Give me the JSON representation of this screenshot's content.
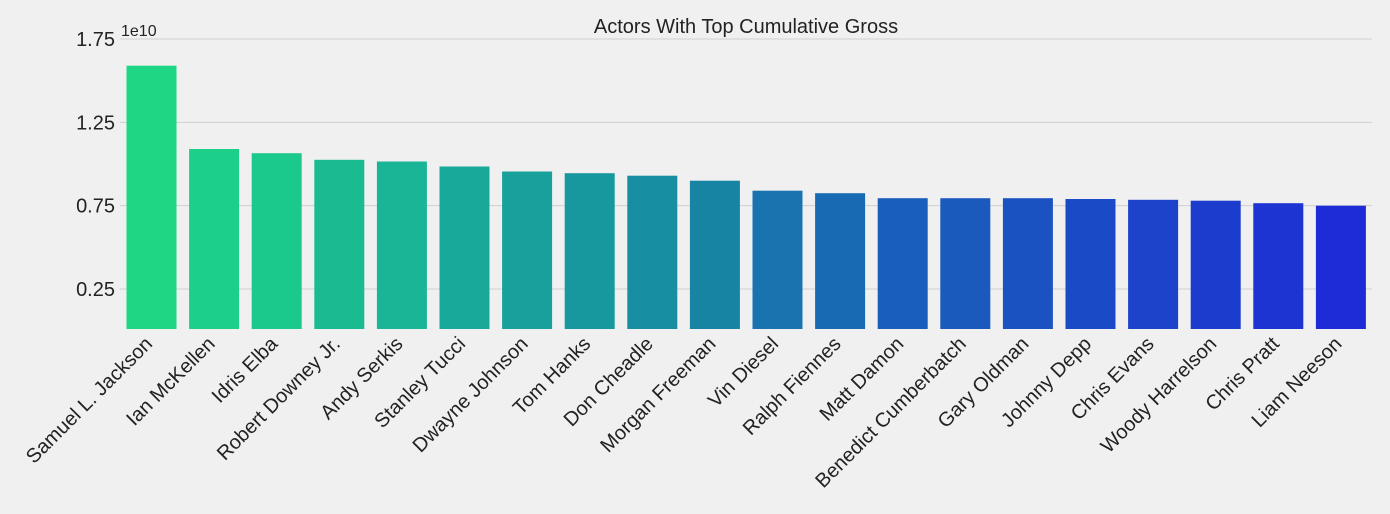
{
  "chart_data": {
    "type": "bar",
    "title": "Actors With Top Cumulative Gross",
    "xlabel": "",
    "ylabel": "",
    "offset_label": "1e10",
    "ylim": [
      0,
      1.75
    ],
    "yticks": [
      0.25,
      0.75,
      1.25,
      1.75
    ],
    "ytick_labels": [
      "0.25",
      "0.75",
      "1.25",
      "1.75"
    ],
    "grid": "horizontal",
    "categories": [
      "Samuel L. Jackson",
      "Ian McKellen",
      "Idris Elba",
      "Robert Downey Jr.",
      "Andy Serkis",
      "Stanley Tucci",
      "Dwayne Johnson",
      "Tom Hanks",
      "Don Cheadle",
      "Morgan Freeman",
      "Vin Diesel",
      "Ralph Fiennes",
      "Matt Damon",
      "Benedict Cumberbatch",
      "Gary Oldman",
      "Johnny Depp",
      "Chris Evans",
      "Woody Harrelson",
      "Chris Pratt",
      "Liam Neeson"
    ],
    "values": [
      1.59,
      1.09,
      1.065,
      1.025,
      1.015,
      0.985,
      0.955,
      0.945,
      0.93,
      0.9,
      0.84,
      0.825,
      0.795,
      0.795,
      0.795,
      0.79,
      0.785,
      0.78,
      0.765,
      0.75
    ],
    "colors": [
      "#1ed784",
      "#1dd089",
      "#1cc98d",
      "#1bbb92",
      "#1ab596",
      "#19a99a",
      "#18a09d",
      "#17989f",
      "#178ea1",
      "#1784a4",
      "#1873af",
      "#186bb3",
      "#195eba",
      "#1a5abd",
      "#1a52c2",
      "#1b4ac6",
      "#1c43ca",
      "#1c3ccd",
      "#1d34d2",
      "#1e2cd8"
    ]
  }
}
